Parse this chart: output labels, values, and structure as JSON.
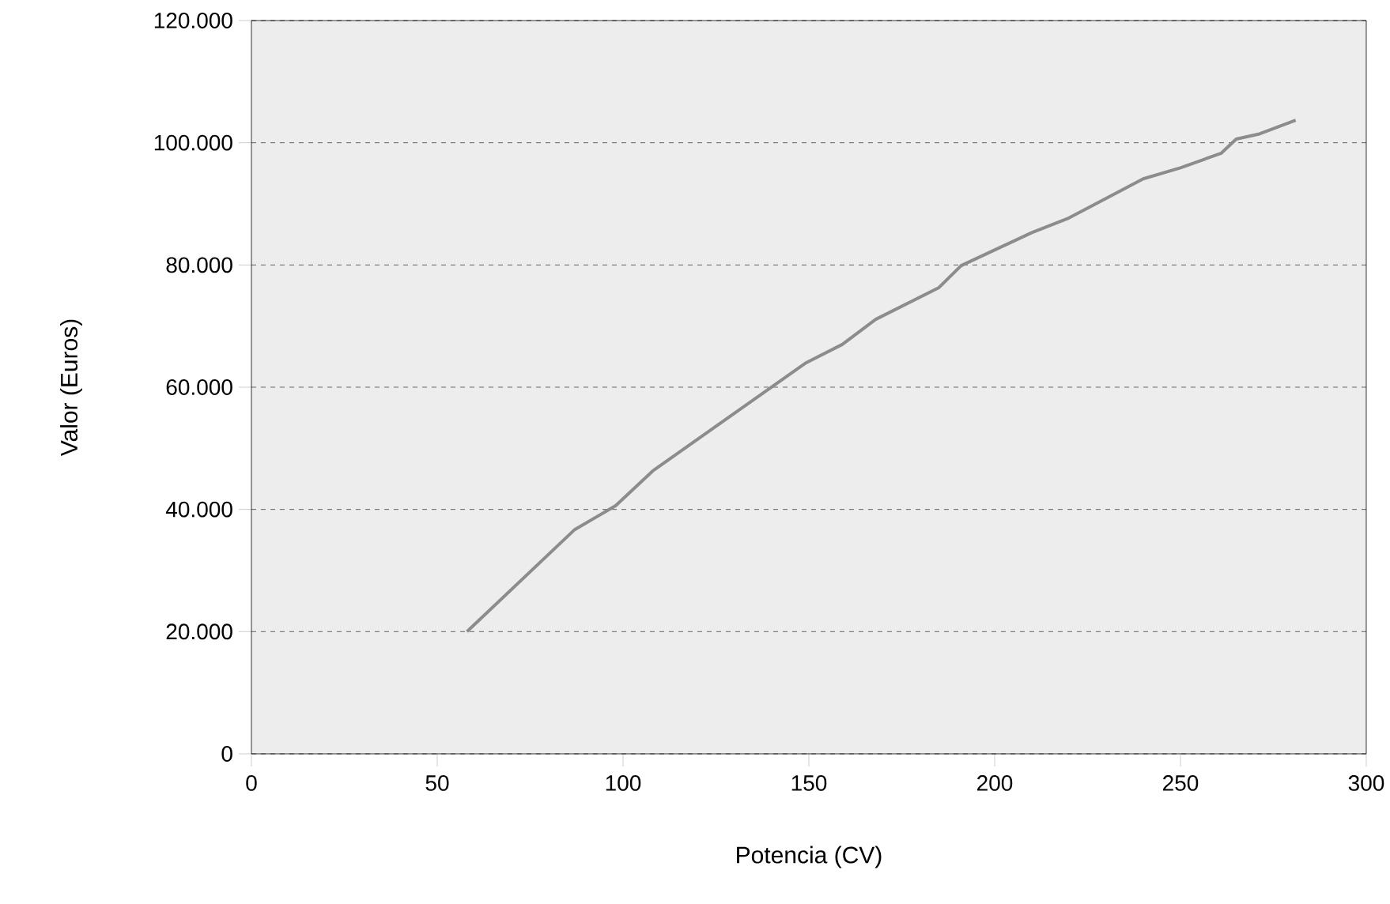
{
  "chart_data": {
    "type": "line",
    "xlabel": "Potencia (CV)",
    "ylabel": "Valor (Euros)",
    "x": [
      58,
      87,
      98,
      108,
      149,
      159,
      168,
      185,
      191,
      210,
      220,
      240,
      250,
      261,
      265,
      271,
      281
    ],
    "series": [
      {
        "color": "#8c8c8c",
        "values": [
          20000,
          36700,
          40600,
          46300,
          63900,
          67000,
          71100,
          76300,
          79900,
          85300,
          87700,
          94100,
          95900,
          98300,
          100600,
          101400,
          103700
        ]
      }
    ],
    "xlim": [
      0,
      300
    ],
    "xticks": [
      0,
      50,
      100,
      150,
      200,
      250,
      300
    ],
    "ylim": [
      0,
      120000
    ],
    "yticks": [
      {
        "value": 0,
        "label": "0"
      },
      {
        "value": 20000,
        "label": "20.000"
      },
      {
        "value": 40000,
        "label": "40.000"
      },
      {
        "value": 60000,
        "label": "60.000"
      },
      {
        "value": 80000,
        "label": "80.000"
      },
      {
        "value": 100000,
        "label": "100.000"
      },
      {
        "value": 120000,
        "label": "120.000"
      }
    ],
    "grid": "y",
    "line_style": "solid",
    "marker": "none"
  }
}
